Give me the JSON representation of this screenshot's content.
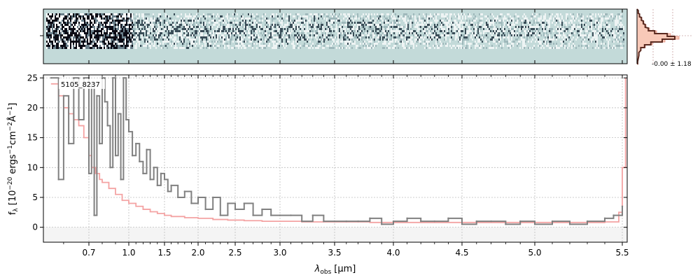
{
  "figure": {
    "object_label": "5105_8237",
    "hist_stat": "-0.00 ± 1.18"
  },
  "chart_data": {
    "type": "line",
    "title": "",
    "xlabel_base": "λ",
    "xlabel_sub": "obs",
    "xlabel_unit": "[μm]",
    "ylabel_prefix": "f",
    "ylabel_sub": "λ",
    "ylabel_mid": "[10",
    "ylabel_exp1": "−20",
    "ylabel_mid2": "ergs",
    "ylabel_exp2": "−1",
    "ylabel_mid3": "cm",
    "ylabel_exp3": "−2",
    "ylabel_mid4": "Å",
    "ylabel_exp4": "−1",
    "ylabel_end": "]",
    "ylim": [
      -2.5,
      25.5
    ],
    "xlim": [
      0.52,
      5.53
    ],
    "x_scale": "sqrt-like (wavelength axis compressed toward red)",
    "x_ticks": [
      {
        "value": 0.7,
        "label": "0.7"
      },
      {
        "value": 1.0,
        "label": "1.0"
      },
      {
        "value": 1.5,
        "label": "1.5"
      },
      {
        "value": 2.0,
        "label": "2.0"
      },
      {
        "value": 2.5,
        "label": "2.5"
      },
      {
        "value": 3.0,
        "label": "3.0"
      },
      {
        "value": 3.5,
        "label": "3.5"
      },
      {
        "value": 4.0,
        "label": "4.0"
      },
      {
        "value": 4.5,
        "label": "4.5"
      },
      {
        "value": 5.0,
        "label": "5.0"
      },
      {
        "value": 5.5,
        "label": "5.5"
      }
    ],
    "y_ticks": [
      0,
      5,
      10,
      15,
      20,
      25
    ],
    "grid": true,
    "legend": "none",
    "colors": {
      "spectrum": "#808080",
      "model": "#f4a3a3",
      "panel2d": "#c3dad9",
      "hist_fill": "#f8c9b8",
      "hist_line": "#5a2a20"
    },
    "series": [
      {
        "role": "spectrum",
        "x": [
          0.55,
          0.58,
          0.6,
          0.62,
          0.64,
          0.66,
          0.68,
          0.7,
          0.72,
          0.74,
          0.76,
          0.78,
          0.8,
          0.82,
          0.84,
          0.86,
          0.88,
          0.9,
          0.92,
          0.94,
          0.96,
          0.98,
          1.0,
          1.05,
          1.1,
          1.15,
          1.2,
          1.25,
          1.3,
          1.35,
          1.4,
          1.45,
          1.5,
          1.55,
          1.6,
          1.7,
          1.8,
          1.9,
          2.0,
          2.1,
          2.2,
          2.3,
          2.4,
          2.5,
          2.6,
          2.7,
          2.8,
          2.9,
          3.0,
          3.1,
          3.2,
          3.3,
          3.4,
          3.5,
          3.6,
          3.7,
          3.8,
          3.9,
          4.0,
          4.1,
          4.2,
          4.3,
          4.4,
          4.5,
          4.6,
          4.7,
          4.8,
          4.9,
          5.0,
          5.1,
          5.2,
          5.3,
          5.4,
          5.45,
          5.5
        ],
        "y": [
          25,
          8,
          22,
          14,
          25,
          18,
          25,
          9,
          24,
          2,
          22,
          14,
          25,
          21,
          17,
          10,
          25,
          12,
          19,
          8,
          25,
          18,
          16,
          12,
          14,
          11,
          9,
          13,
          8,
          10,
          7,
          9,
          8,
          6,
          7,
          5,
          6,
          4,
          5,
          3,
          5,
          2,
          4,
          3,
          4,
          2,
          3,
          2,
          2,
          2,
          1,
          2,
          1,
          1,
          1,
          1,
          1.5,
          0.5,
          1,
          1.5,
          1,
          1,
          1.5,
          0.5,
          1,
          1,
          0.5,
          1,
          0.5,
          1,
          0.5,
          1,
          1.5,
          2,
          3.5
        ]
      },
      {
        "role": "model",
        "x": [
          0.55,
          0.58,
          0.6,
          0.62,
          0.64,
          0.66,
          0.68,
          0.7,
          0.72,
          0.75,
          0.78,
          0.8,
          0.85,
          0.9,
          0.95,
          1.0,
          1.1,
          1.2,
          1.3,
          1.4,
          1.5,
          1.6,
          1.8,
          2.0,
          2.2,
          2.4,
          2.6,
          2.8,
          3.0,
          3.2,
          3.4,
          3.6,
          3.8,
          4.0,
          4.2,
          4.4,
          4.6,
          4.8,
          5.0,
          5.2,
          5.4,
          5.48,
          5.5,
          5.52
        ],
        "y": [
          24,
          22,
          20,
          19,
          18,
          17,
          15,
          12,
          10,
          9,
          8,
          7.5,
          6.5,
          5.5,
          4.5,
          4,
          3.5,
          3,
          2.6,
          2.3,
          2,
          1.8,
          1.6,
          1.5,
          1.3,
          1.2,
          1.1,
          1,
          1,
          0.9,
          0.9,
          0.9,
          0.8,
          0.8,
          0.8,
          0.8,
          0.8,
          0.8,
          0.8,
          0.8,
          0.9,
          2.5,
          10,
          25
        ]
      }
    ]
  }
}
